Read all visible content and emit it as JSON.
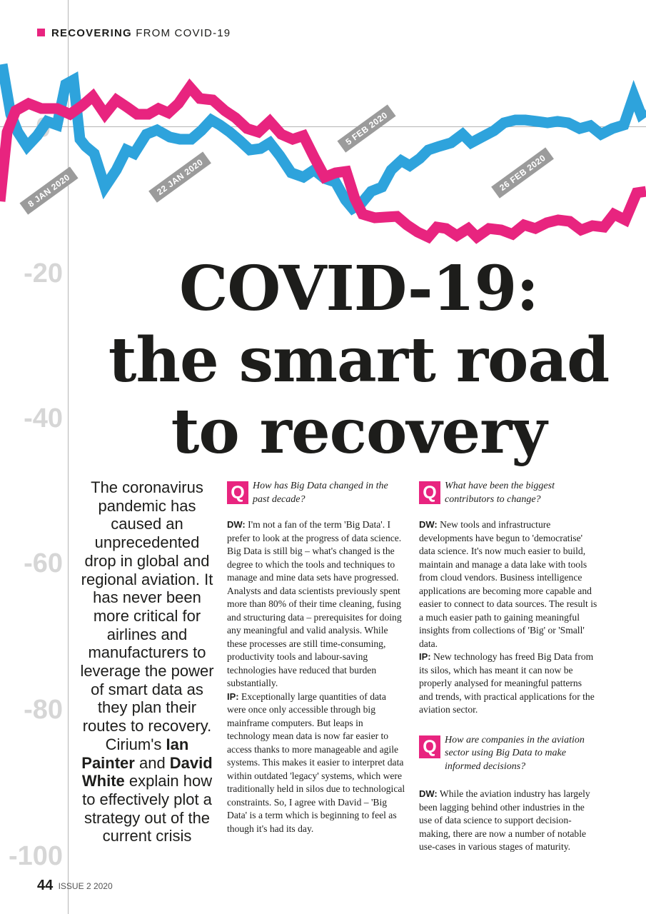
{
  "header": {
    "section_bold": "RECOVERING",
    "section_rest": "FROM COVID-19"
  },
  "axis_labels": [
    "0",
    "-20",
    "-40",
    "-60",
    "-80",
    "-100"
  ],
  "date_labels": [
    "8 JAN 2020",
    "22 JAN 2020",
    "5 FEB 2020",
    "26 FEB 2020"
  ],
  "colors": {
    "accent": "#e8247f",
    "blue_line": "#2ea3dc",
    "grey": "#9b9b9b"
  },
  "title": {
    "line1": "COVID-19:",
    "line2": "the smart road",
    "line3": "to recovery"
  },
  "intro": {
    "text1": "The coronavirus pandemic has caused an unprecedented drop in global and regional aviation. It has never been more critical for airlines and manufacturers to leverage the power of smart data as they plan their routes to recovery. Cirium's ",
    "name1": "Ian Painter",
    "text2": " and ",
    "name2": "David White",
    "text3": " explain how to effectively plot a strategy out of the current crisis"
  },
  "q1": {
    "label": "Q",
    "question": "How has Big Data changed in the past decade?",
    "a1_speaker": "DW:",
    "a1_text": "I'm not a fan of the term 'Big Data'. I prefer to look at the progress of data science. Big Data is still big – what's changed is the degree to which the tools and techniques to manage and mine data sets have progressed. Analysts and data scientists previously spent more than 80% of their time cleaning, fusing and structuring data – prerequisites for doing any meaningful and valid analysis. While these processes are still time-consuming, productivity tools and labour-saving technologies have reduced that burden substantially.",
    "a2_speaker": "IP:",
    "a2_text": "Exceptionally large quantities of data were once only accessible through big mainframe computers. But leaps in technology mean data is now far easier to access thanks to more manageable and agile systems. This makes it easier to interpret data within outdated 'legacy' systems, which were traditionally held in silos due to technological constraints. So, I agree with David – 'Big Data' is a term which is beginning to feel as though it's had its day."
  },
  "q2": {
    "label": "Q",
    "question": "What have been the biggest contributors to change?",
    "a1_speaker": "DW:",
    "a1_text": "New tools and infrastructure developments have begun to 'democratise' data science. It's now much easier to build, maintain and manage a data lake with tools from cloud vendors. Business intelligence applications are becoming more capable and easier to connect to data sources. The result is a much easier path to gaining meaningful insights from collections of 'Big' or 'Small' data.",
    "a2_speaker": "IP:",
    "a2_text": "New technology has freed Big Data from its silos, which has meant it can now be properly analysed for meaningful patterns and trends, with practical applications for the aviation sector."
  },
  "q3": {
    "label": "Q",
    "question": "How are companies in the aviation sector using Big Data to make informed decisions?",
    "a1_speaker": "DW:",
    "a1_text": "While the aviation industry has largely been lagging behind other industries in the use of data science to support decision-making, there are now a number of notable use-cases in various stages of maturity."
  },
  "footer": {
    "page": "44",
    "issue": "ISSUE 2  2020"
  }
}
